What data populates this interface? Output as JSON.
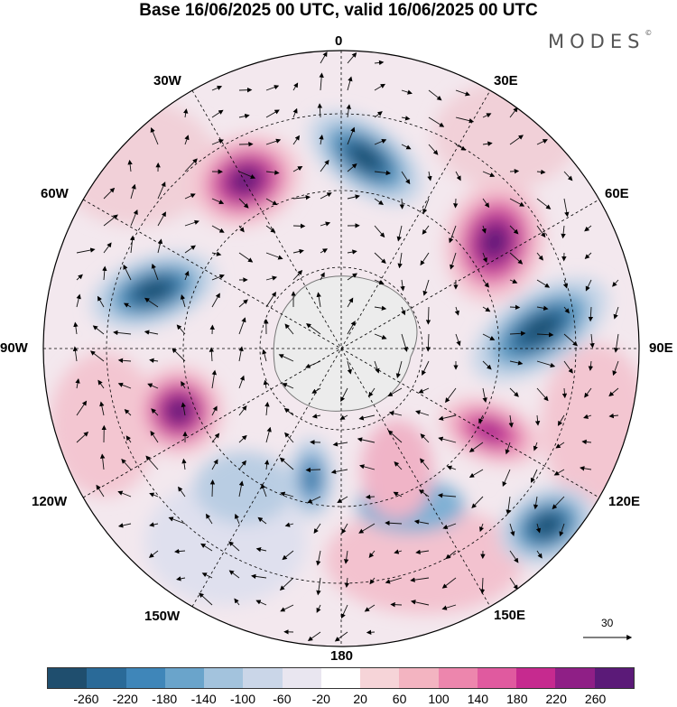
{
  "title": "Base 16/06/2025 00 UTC, valid 16/06/2025 00 UTC",
  "brand": "MODES",
  "brand_mark": "©",
  "longitude_labels": {
    "lon_0": "0",
    "lon_30e": "30E",
    "lon_60e": "60E",
    "lon_90e": "90E",
    "lon_120e": "120E",
    "lon_150e": "150E",
    "lon_180": "180",
    "lon_150w": "150W",
    "lon_120w": "120W",
    "lon_90w": "90W",
    "lon_60w": "60W",
    "lon_30w": "30W"
  },
  "reference_vector": {
    "label": "30"
  },
  "colorbar": {
    "ticks": [
      "-260",
      "-220",
      "-180",
      "-140",
      "-100",
      "-60",
      "-20",
      "20",
      "60",
      "100",
      "140",
      "180",
      "220",
      "260"
    ],
    "colors": [
      "#1f4e6e",
      "#2a6a98",
      "#3f86b9",
      "#6aa4cb",
      "#a3c3dd",
      "#cad6e8",
      "#e9e6f0",
      "#ffffff",
      "#f6d4d8",
      "#f3b4c1",
      "#ed86ad",
      "#e05a9f",
      "#c62a8f",
      "#8f1f86",
      "#5b1a78"
    ]
  },
  "map": {
    "projection": "south polar stereographic",
    "anomaly_centers": [
      {
        "name": "positive-anomaly-30w",
        "sign": "positive",
        "level": "very high"
      },
      {
        "name": "negative-anomaly-10e",
        "sign": "negative",
        "level": "high"
      },
      {
        "name": "positive-anomaly-45e",
        "sign": "positive",
        "level": "very high"
      },
      {
        "name": "negative-anomaly-75w",
        "sign": "negative",
        "level": "high"
      },
      {
        "name": "negative-anomaly-75e",
        "sign": "negative",
        "level": "high"
      },
      {
        "name": "positive-anomaly-105w",
        "sign": "positive",
        "level": "very high"
      },
      {
        "name": "positive-anomaly-115e",
        "sign": "positive",
        "level": "high"
      },
      {
        "name": "negative-anomaly-130e",
        "sign": "negative",
        "level": "high"
      },
      {
        "name": "negative-anomaly-165w",
        "sign": "negative",
        "level": "moderate"
      }
    ]
  }
}
